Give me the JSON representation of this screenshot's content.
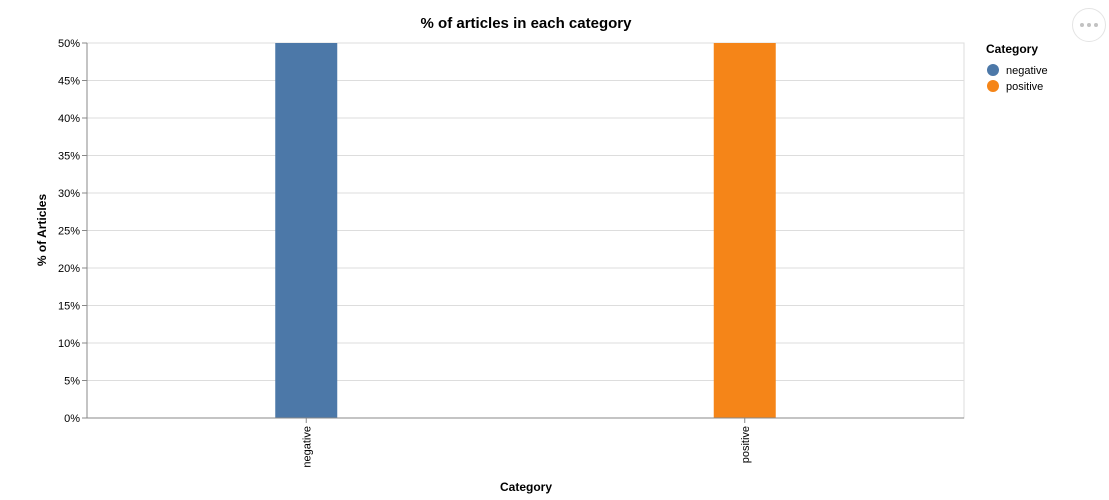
{
  "chart_data": {
    "type": "bar",
    "title": "% of articles in each category",
    "xlabel": "Category",
    "ylabel": "% of Articles",
    "categories": [
      "negative",
      "positive"
    ],
    "values": [
      50,
      50
    ],
    "colors": [
      "#4c78a8",
      "#f58518"
    ],
    "ylim": [
      0,
      50
    ],
    "y_ticks": [
      "0%",
      "5%",
      "10%",
      "15%",
      "20%",
      "25%",
      "30%",
      "35%",
      "40%",
      "45%",
      "50%"
    ],
    "y_tick_values": [
      0,
      5,
      10,
      15,
      20,
      25,
      30,
      35,
      40,
      45,
      50
    ],
    "grid": true,
    "legend": {
      "title": "Category",
      "placement": "right",
      "entries": [
        {
          "label": "negative",
          "color": "#4c78a8"
        },
        {
          "label": "positive",
          "color": "#f58518"
        }
      ]
    }
  },
  "menu": {
    "icon": "more-horizontal-icon"
  }
}
